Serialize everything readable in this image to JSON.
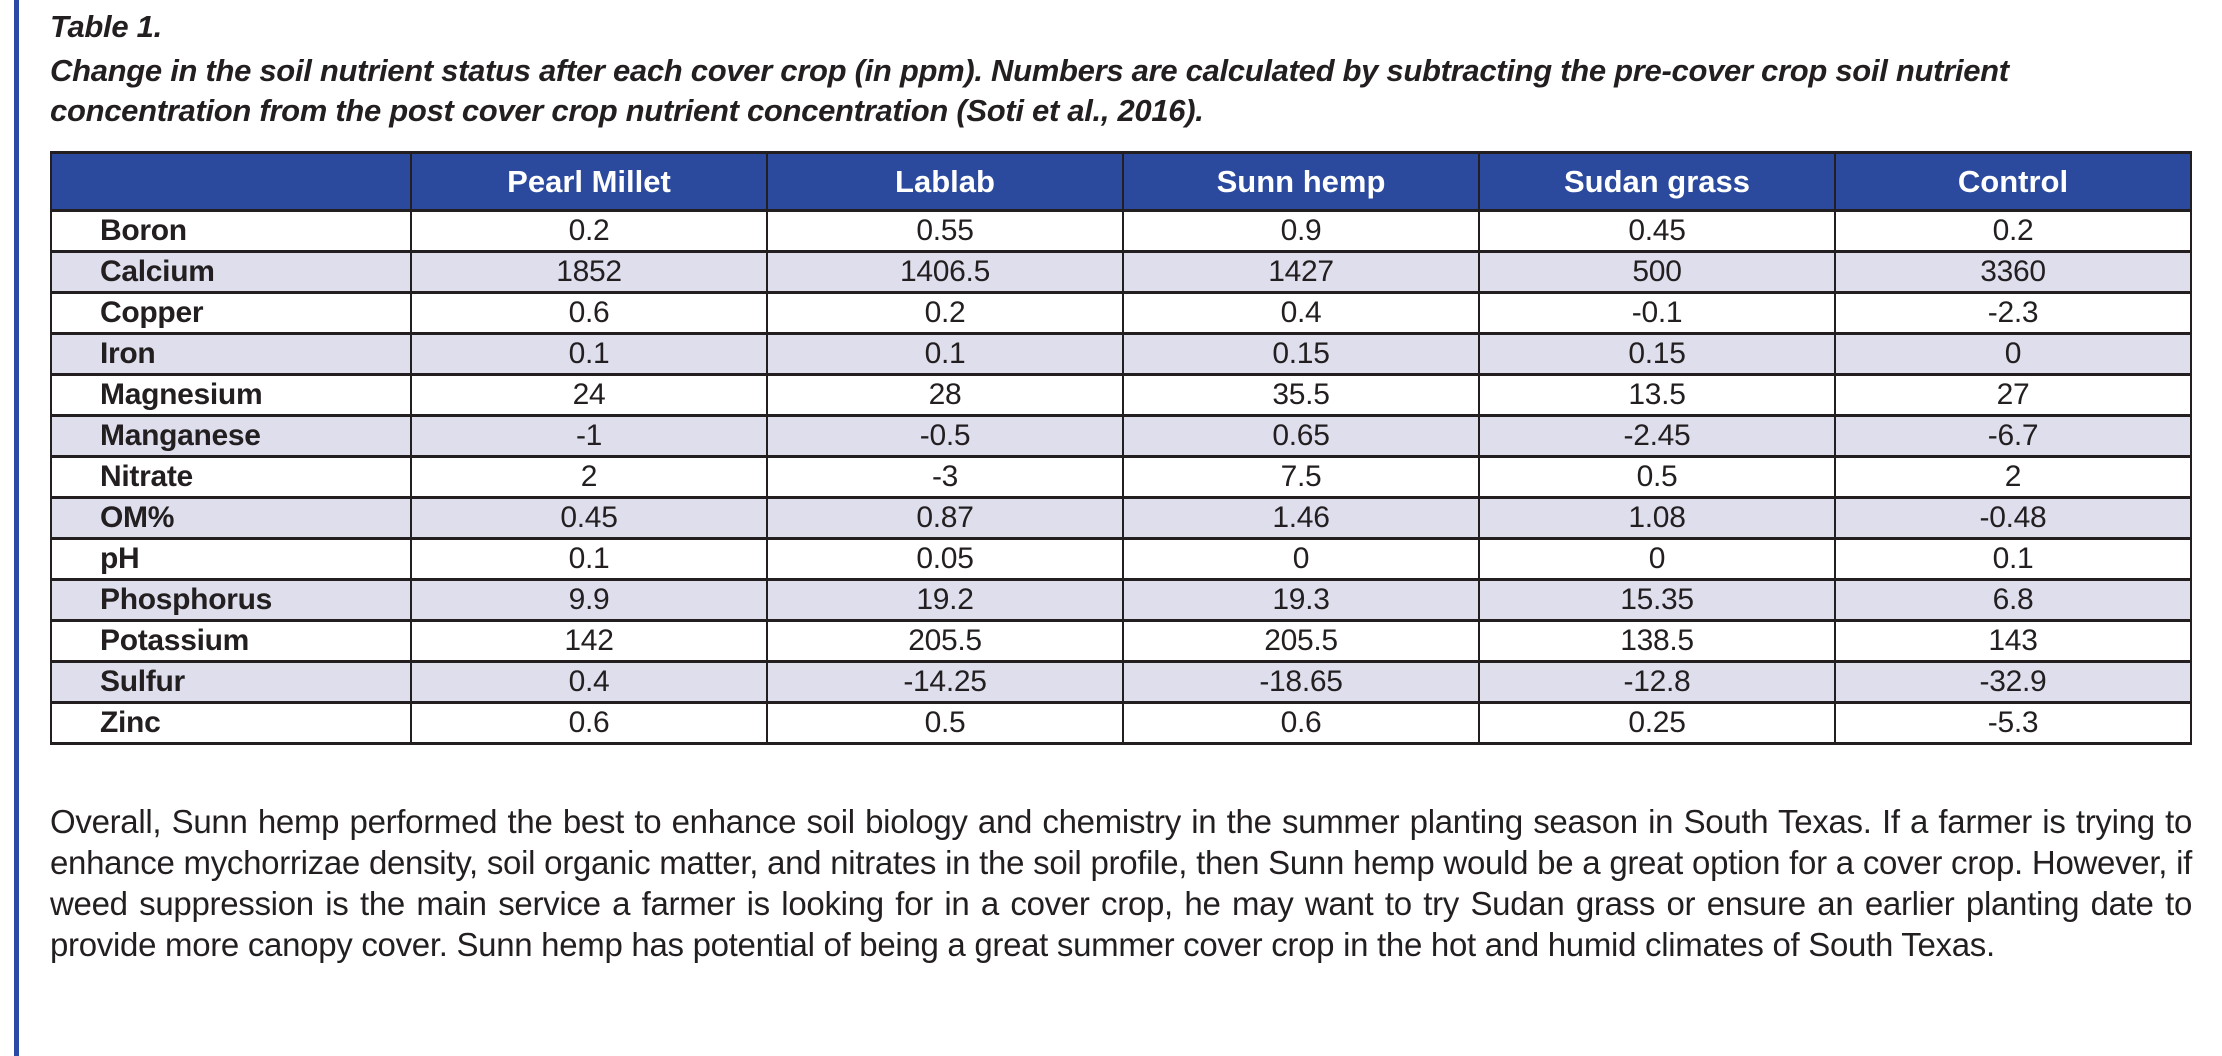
{
  "page": {
    "accent_color": "#2b4aa5",
    "header_fill_color": "#2b4a9e",
    "stripe_fill_color": "#dedeed",
    "border_color": "#231f20"
  },
  "table": {
    "title": "Table 1.",
    "caption": "Change in the soil nutrient status after each cover crop (in ppm). Numbers are calculated by subtracting the pre-cover crop soil nutrient concentration from the post cover crop nutrient concentration (Soti et al., 2016).",
    "columns": [
      "",
      "Pearl Millet",
      "Lablab",
      "Sunn hemp",
      "Sudan grass",
      "Control"
    ],
    "rows": [
      {
        "label": "Boron",
        "values": [
          "0.2",
          "0.55",
          "0.9",
          "0.45",
          "0.2"
        ]
      },
      {
        "label": "Calcium",
        "values": [
          "1852",
          "1406.5",
          "1427",
          "500",
          "3360"
        ]
      },
      {
        "label": "Copper",
        "values": [
          "0.6",
          "0.2",
          "0.4",
          "-0.1",
          "-2.3"
        ]
      },
      {
        "label": "Iron",
        "values": [
          "0.1",
          "0.1",
          "0.15",
          "0.15",
          "0"
        ]
      },
      {
        "label": "Magnesium",
        "values": [
          "24",
          "28",
          "35.5",
          "13.5",
          "27"
        ]
      },
      {
        "label": "Manganese",
        "values": [
          "-1",
          "-0.5",
          "0.65",
          "-2.45",
          "-6.7"
        ]
      },
      {
        "label": "Nitrate",
        "values": [
          "2",
          "-3",
          "7.5",
          "0.5",
          "2"
        ]
      },
      {
        "label": "OM%",
        "values": [
          "0.45",
          "0.87",
          "1.46",
          "1.08",
          "-0.48"
        ]
      },
      {
        "label": "pH",
        "values": [
          "0.1",
          "0.05",
          "0",
          "0",
          "0.1"
        ]
      },
      {
        "label": "Phosphorus",
        "values": [
          "9.9",
          "19.2",
          "19.3",
          "15.35",
          "6.8"
        ]
      },
      {
        "label": "Potassium",
        "values": [
          "142",
          "205.5",
          "205.5",
          "138.5",
          "143"
        ]
      },
      {
        "label": "Sulfur",
        "values": [
          "0.4",
          "-14.25",
          "-18.65",
          "-12.8",
          "-32.9"
        ]
      },
      {
        "label": "Zinc",
        "values": [
          "0.6",
          "0.5",
          "0.6",
          "0.25",
          "-5.3"
        ]
      }
    ]
  },
  "body_text": "Overall, Sunn hemp performed the best to enhance soil biology and chemistry in the summer planting season in South Texas. If a farmer is trying to enhance mychorrizae density, soil organic matter, and nitrates in the soil profile, then Sunn hemp would be a great option for a cover crop. However, if weed suppression is the main service a farmer is looking for in a cover crop, he may want to try Sudan grass or ensure an earlier planting date to provide more canopy cover. Sunn hemp has potential of being a great summer cover crop in the hot and humid climates of South Texas."
}
